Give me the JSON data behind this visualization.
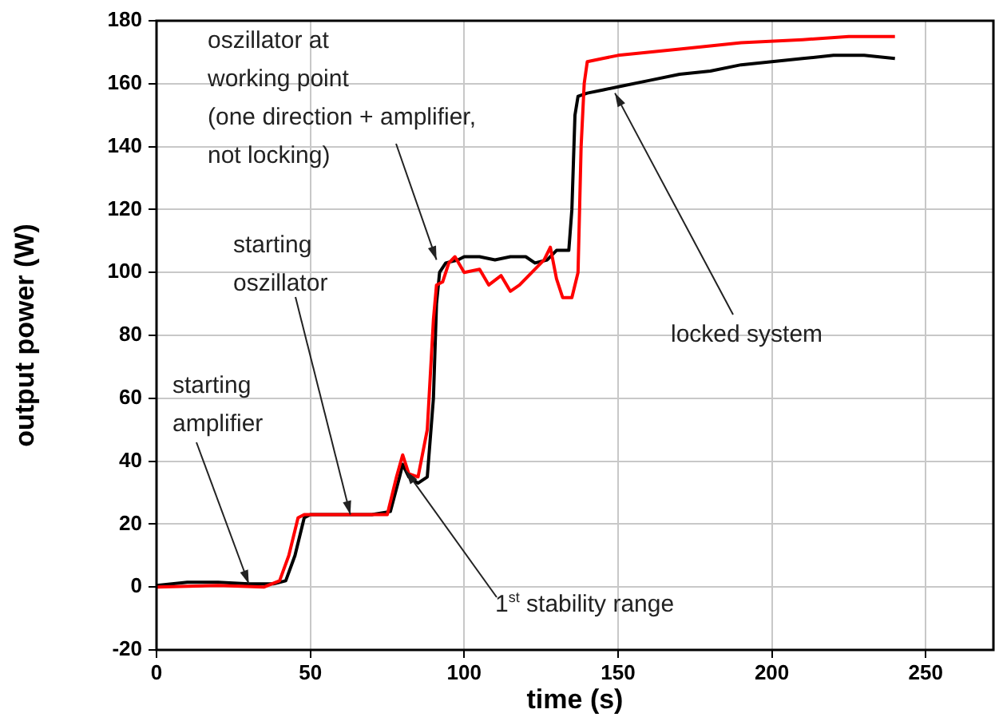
{
  "chart_data": {
    "type": "line",
    "xlabel": "time (s)",
    "ylabel": "output power (W)",
    "xlim": [
      0,
      272
    ],
    "ylim": [
      -20,
      180
    ],
    "xticks": [
      0,
      50,
      100,
      150,
      200,
      250
    ],
    "yticks": [
      -20,
      0,
      20,
      40,
      60,
      80,
      100,
      120,
      140,
      160,
      180
    ],
    "grid": true,
    "legend": false,
    "marker": "none",
    "line_style": "solid",
    "series": [
      {
        "color": "#ff0000",
        "x": [
          0,
          20,
          35,
          40,
          43,
          46,
          48,
          60,
          75,
          78,
          80,
          82,
          85,
          88,
          90,
          91,
          93,
          95,
          97,
          100,
          105,
          108,
          112,
          115,
          118,
          122,
          126,
          128,
          130,
          132,
          135,
          137,
          138,
          139,
          140,
          145,
          150,
          170,
          190,
          210,
          225,
          240
        ],
        "values": [
          0,
          0.5,
          0,
          2,
          10,
          22,
          23,
          23,
          23,
          35,
          42,
          36,
          35,
          50,
          85,
          96,
          97,
          103,
          105,
          100,
          101,
          96,
          99,
          94,
          96,
          100,
          104,
          108,
          98,
          92,
          92,
          100,
          140,
          160,
          167,
          168,
          169,
          171,
          173,
          174,
          175,
          175
        ]
      },
      {
        "color": "#000000",
        "x": [
          0,
          10,
          20,
          30,
          38,
          42,
          45,
          48,
          50,
          60,
          70,
          76,
          79,
          80,
          82,
          85,
          88,
          90,
          91,
          92,
          94,
          98,
          100,
          105,
          110,
          115,
          120,
          123,
          127,
          130,
          134,
          135,
          136,
          137,
          140,
          145,
          150,
          160,
          170,
          180,
          190,
          200,
          210,
          220,
          230,
          240
        ],
        "values": [
          0.5,
          1.5,
          1.5,
          1,
          1,
          2,
          10,
          22,
          23,
          23,
          23,
          24,
          35,
          39,
          35,
          33,
          35,
          60,
          90,
          100,
          103,
          104,
          105,
          105,
          104,
          105,
          105,
          103,
          104,
          107,
          107,
          120,
          150,
          156,
          157,
          158,
          159,
          161,
          163,
          164,
          166,
          167,
          168,
          169,
          169,
          168
        ]
      }
    ],
    "annotations": [
      {
        "text": "starting\namplifier",
        "x": 30,
        "y": 1
      },
      {
        "text": "starting\noszillator",
        "x": 63,
        "y": 23
      },
      {
        "text": "oszillator at\nworking point\n(one direction + amplifier,\nnot locking)",
        "x": 91,
        "y": 104
      },
      {
        "text": "1$^{st}$ stability range",
        "x": 81,
        "y": 37
      },
      {
        "text": "locked system",
        "x": 149,
        "y": 157
      }
    ]
  }
}
